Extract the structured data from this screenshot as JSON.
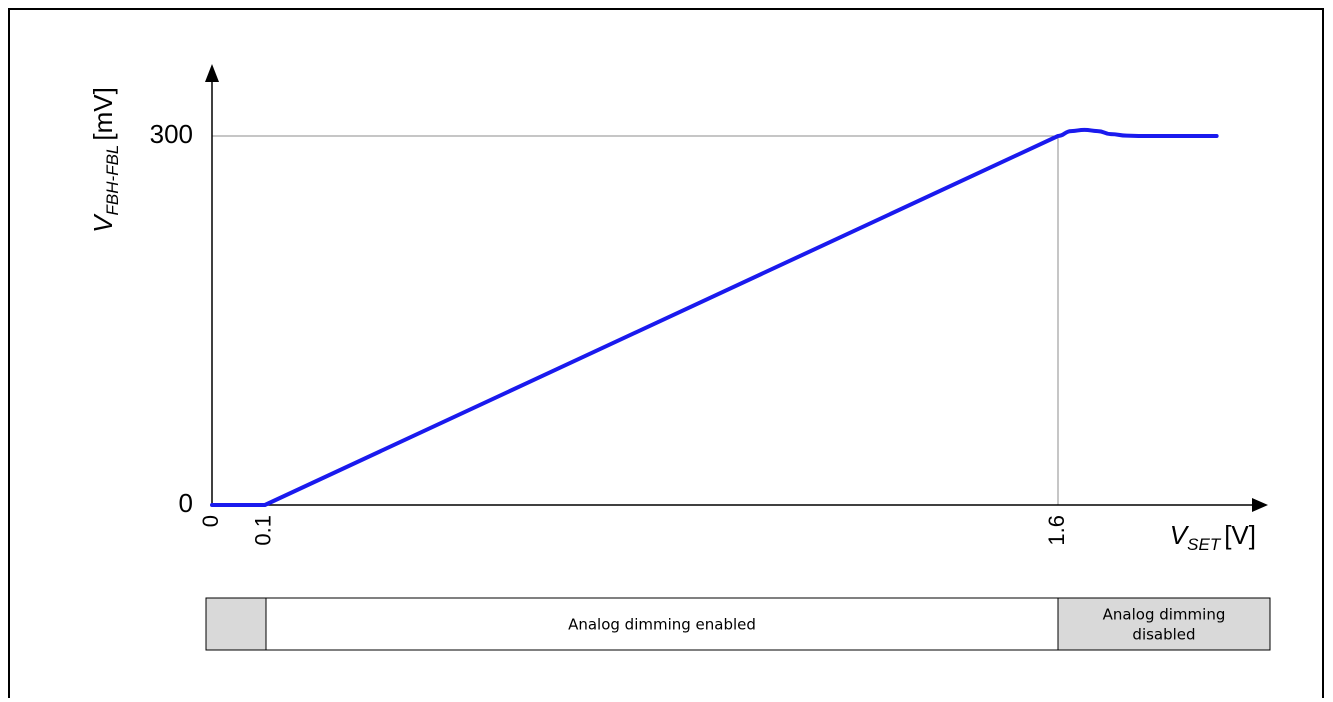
{
  "chart_data": {
    "type": "line",
    "title": "",
    "xlabel": {
      "main": "V",
      "sub": "SET",
      "unit": "[V]"
    },
    "ylabel": {
      "main": "V",
      "sub": "FBH-FBL",
      "unit": "[mV]"
    },
    "xlim": [
      0,
      1.9
    ],
    "ylim": [
      0,
      330
    ],
    "x_ticks": [
      {
        "value": 0,
        "label": "0"
      },
      {
        "value": 0.1,
        "label": "0.1"
      },
      {
        "value": 1.6,
        "label": "1.6"
      }
    ],
    "y_ticks": [
      {
        "value": 0,
        "label": "0"
      },
      {
        "value": 300,
        "label": "300"
      }
    ],
    "reference_lines": [
      {
        "axis": "y",
        "value": 300
      },
      {
        "axis": "x",
        "value": 1.6
      }
    ],
    "series": [
      {
        "color": "#1a1aee",
        "points": [
          [
            0,
            0
          ],
          [
            0.1,
            0
          ],
          [
            1.6,
            300
          ],
          [
            1.625,
            304
          ],
          [
            1.65,
            305
          ],
          [
            1.675,
            304
          ],
          [
            1.7,
            301.5
          ],
          [
            1.73,
            300.3
          ],
          [
            1.76,
            300
          ],
          [
            1.9,
            300
          ]
        ]
      }
    ]
  },
  "regions": [
    {
      "from": 0,
      "to": 0.1,
      "label": "",
      "fill": "#d9d9d9"
    },
    {
      "from": 0.1,
      "to": 1.6,
      "label": "Analog dimming enabled",
      "fill": "#ffffff"
    },
    {
      "from": 1.6,
      "to": 1.9,
      "label_line1": "Analog dimming",
      "label_line2": "disabled",
      "fill": "#d9d9d9"
    }
  ]
}
